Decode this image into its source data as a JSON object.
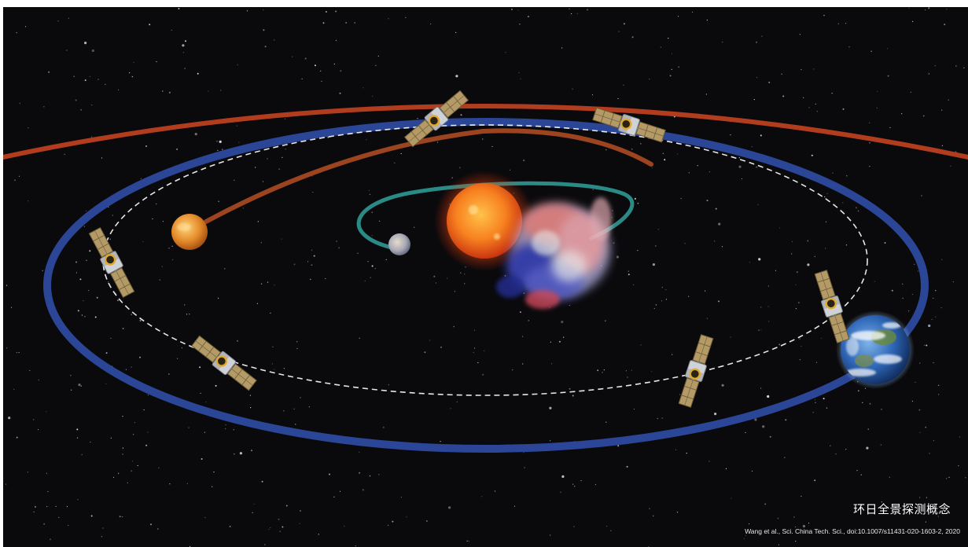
{
  "caption": {
    "title": "环日全景探测概念",
    "citation": "Wang et al., Sci. China Tech. Sci., doi:10.1007/s11431-020-1603-2, 2020"
  },
  "colors": {
    "background": "#0a0a0d",
    "outer_orbit": "#b23d1e",
    "earth_orbit": "#2d4a9e",
    "inner_path": "#9c4320",
    "sun_orbit": "#2a8a86",
    "sun": "#f26a1b",
    "venus": "#e08a2a",
    "earth": "#2f67b8"
  },
  "objects": {
    "spacecraft_count": 6,
    "bodies": [
      "sun",
      "venus",
      "mercury",
      "earth"
    ]
  }
}
